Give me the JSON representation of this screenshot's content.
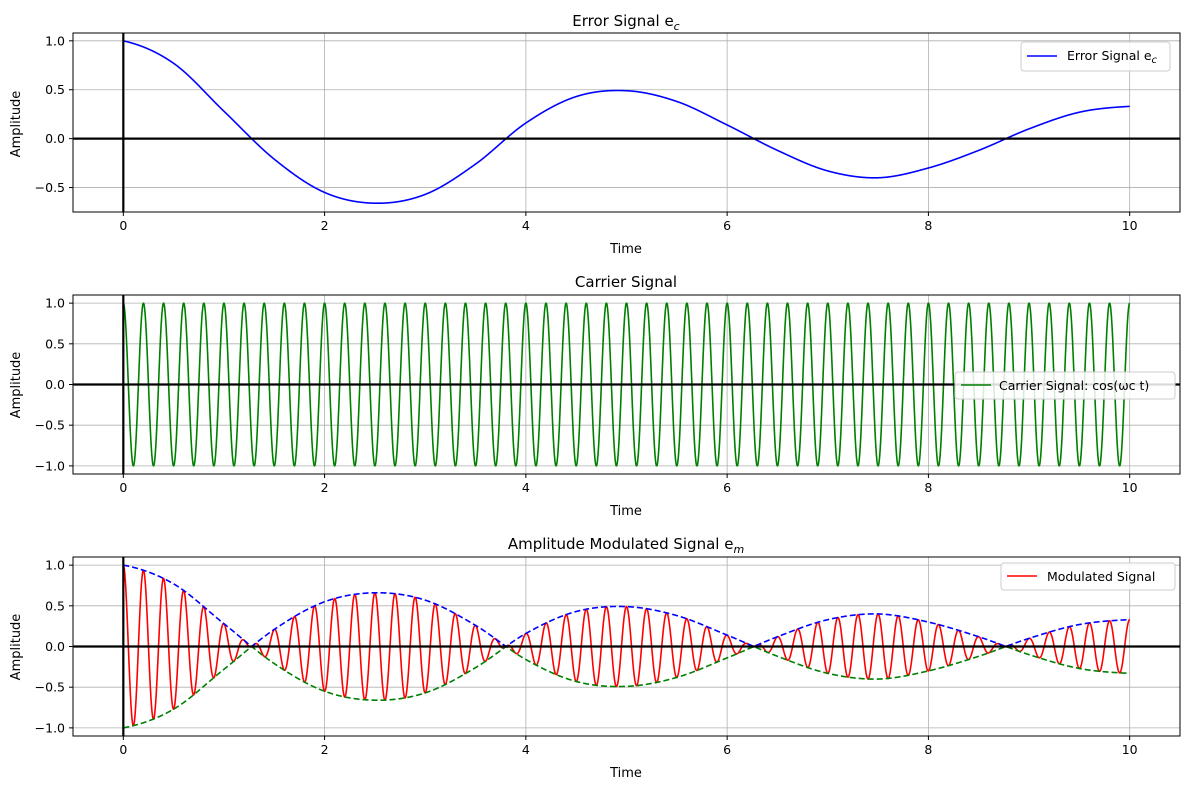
{
  "chart_data": [
    {
      "type": "line",
      "title": "Error Signal e",
      "title_sub": "c",
      "xlabel": "Time",
      "ylabel": "Amplitude",
      "xlim": [
        -0.5,
        10.5
      ],
      "ylim": [
        -0.75,
        1.08
      ],
      "xticks": [
        "0",
        "2",
        "4",
        "6",
        "8",
        "10"
      ],
      "yticks": [
        "−0.5",
        "0.0",
        "0.5",
        "1.0"
      ],
      "grid": true,
      "legend_position": "top-right",
      "series": [
        {
          "name": "Error Signal e",
          "name_sub": "c",
          "color": "#0000ff",
          "style": "solid",
          "x": [
            0,
            0.5,
            1,
            1.5,
            2,
            2.5,
            3,
            3.5,
            4,
            4.5,
            5,
            5.5,
            6,
            6.5,
            7,
            7.5,
            8,
            8.5,
            9,
            9.5,
            10
          ],
          "y": [
            1.0,
            0.77,
            0.28,
            -0.21,
            -0.55,
            -0.66,
            -0.57,
            -0.26,
            0.16,
            0.43,
            0.49,
            0.38,
            0.14,
            -0.12,
            -0.33,
            -0.4,
            -0.3,
            -0.12,
            0.1,
            0.27,
            0.33
          ]
        }
      ]
    },
    {
      "type": "line",
      "title": "Carrier Signal",
      "xlabel": "Time",
      "ylabel": "Amplitude",
      "xlim": [
        -0.5,
        10.5
      ],
      "ylim": [
        -1.1,
        1.1
      ],
      "xticks": [
        "0",
        "2",
        "4",
        "6",
        "8",
        "10"
      ],
      "yticks": [
        "−1.0",
        "−0.5",
        "0.0",
        "0.5",
        "1.0"
      ],
      "grid": true,
      "legend_position": "center-right",
      "series": [
        {
          "name": "Carrier Signal: cos(ωc t)",
          "color": "#008000",
          "style": "solid",
          "function": "cos(2*pi*5*t)",
          "frequency": 5,
          "x_range": [
            0,
            10
          ]
        }
      ]
    },
    {
      "type": "line",
      "title": "Amplitude Modulated Signal e",
      "title_sub": "m",
      "xlabel": "Time",
      "ylabel": "Amplitude",
      "xlim": [
        -0.5,
        10.5
      ],
      "ylim": [
        -1.1,
        1.1
      ],
      "xticks": [
        "0",
        "2",
        "4",
        "6",
        "8",
        "10"
      ],
      "yticks": [
        "−1.0",
        "−0.5",
        "0.0",
        "0.5",
        "1.0"
      ],
      "grid": true,
      "legend_position": "top-right",
      "series": [
        {
          "name": "Modulated Signal",
          "color": "#ff0000",
          "style": "solid",
          "function": "e_c(t)*cos(2*pi*5*t)",
          "x_range": [
            0,
            10
          ]
        },
        {
          "color": "#0000ff",
          "style": "dashed",
          "function": "|e_c(t)|",
          "x_range": [
            0,
            10
          ]
        },
        {
          "color": "#008000",
          "style": "dashed",
          "function": "-|e_c(t)|",
          "x_range": [
            0,
            10
          ]
        }
      ]
    }
  ]
}
